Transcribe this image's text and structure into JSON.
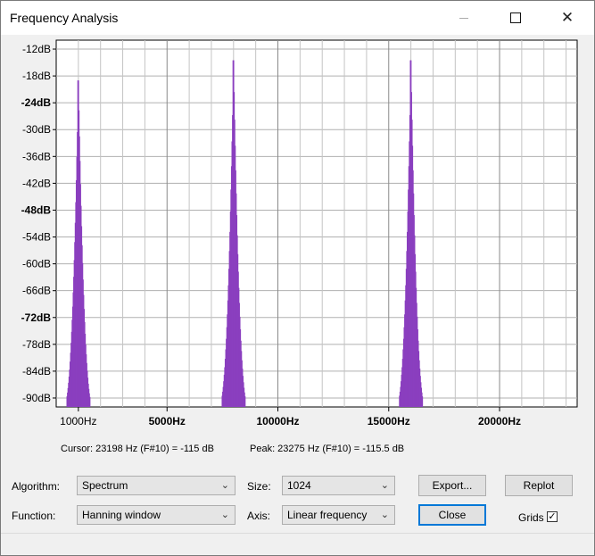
{
  "window": {
    "title": "Frequency Analysis"
  },
  "chart_data": {
    "type": "bar",
    "title": "",
    "y_ticks": [
      "-12dB",
      "-18dB",
      "-24dB",
      "-30dB",
      "-36dB",
      "-42dB",
      "-48dB",
      "-54dB",
      "-60dB",
      "-66dB",
      "-72dB",
      "-78dB",
      "-84dB",
      "-90dB"
    ],
    "x_ticks": [
      "1000Hz",
      "5000Hz",
      "10000Hz",
      "15000Hz",
      "20000Hz"
    ],
    "xlim": [
      0,
      23500
    ],
    "ylim": [
      -92,
      -10
    ],
    "bar_color": "#8a3fbf",
    "peaks": [
      {
        "center_hz": 1000,
        "peak_db": -19
      },
      {
        "center_hz": 8000,
        "peak_db": -14.5
      },
      {
        "center_hz": 16000,
        "peak_db": -14.5
      }
    ]
  },
  "status": {
    "cursor": "Cursor: 23198 Hz (F#10) = -115 dB",
    "peak": "Peak: 23275 Hz (F#10) = -115.5 dB"
  },
  "controls": {
    "algorithm_label": "Algorithm:",
    "algorithm_value": "Spectrum",
    "function_label": "Function:",
    "function_value": "Hanning window",
    "size_label": "Size:",
    "size_value": "1024",
    "axis_label": "Axis:",
    "axis_value": "Linear frequency",
    "export_label": "Export...",
    "close_label": "Close",
    "replot_label": "Replot",
    "grids_label": "Grids",
    "grids_checked": true
  }
}
